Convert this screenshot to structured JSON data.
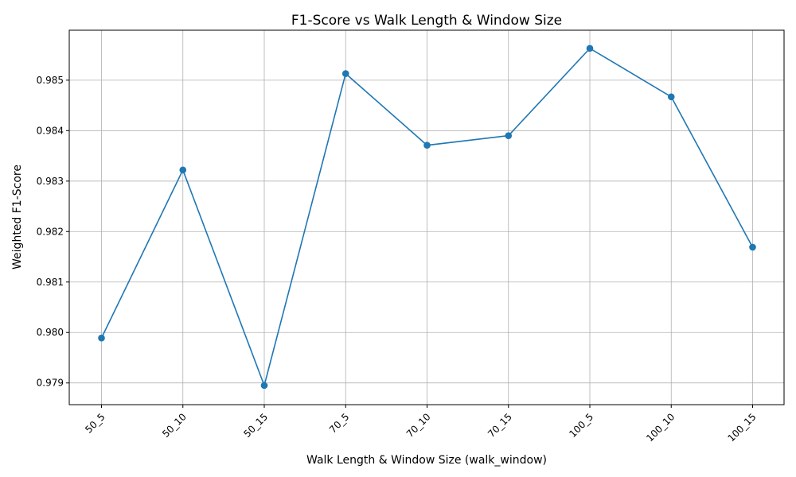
{
  "chart_data": {
    "type": "line",
    "title": "F1-Score vs Walk Length & Window Size",
    "xlabel": "Walk Length & Window Size (walk_window)",
    "ylabel": "Weighted F1-Score",
    "categories": [
      "50_5",
      "50_10",
      "50_15",
      "70_5",
      "70_10",
      "70_15",
      "100_5",
      "100_10",
      "100_15"
    ],
    "series": [
      {
        "values": [
          0.97989,
          0.98322,
          0.97895,
          0.98513,
          0.98371,
          0.9839,
          0.98563,
          0.98467,
          0.98169
        ],
        "color": "#1f77b4",
        "marker": "circle"
      }
    ],
    "ylim": [
      0.97857,
      0.98599
    ],
    "yticks": [
      "0.979",
      "0.980",
      "0.981",
      "0.982",
      "0.983",
      "0.984",
      "0.985"
    ],
    "grid": true,
    "grid_color": "#b0b0b0",
    "legend": false
  }
}
